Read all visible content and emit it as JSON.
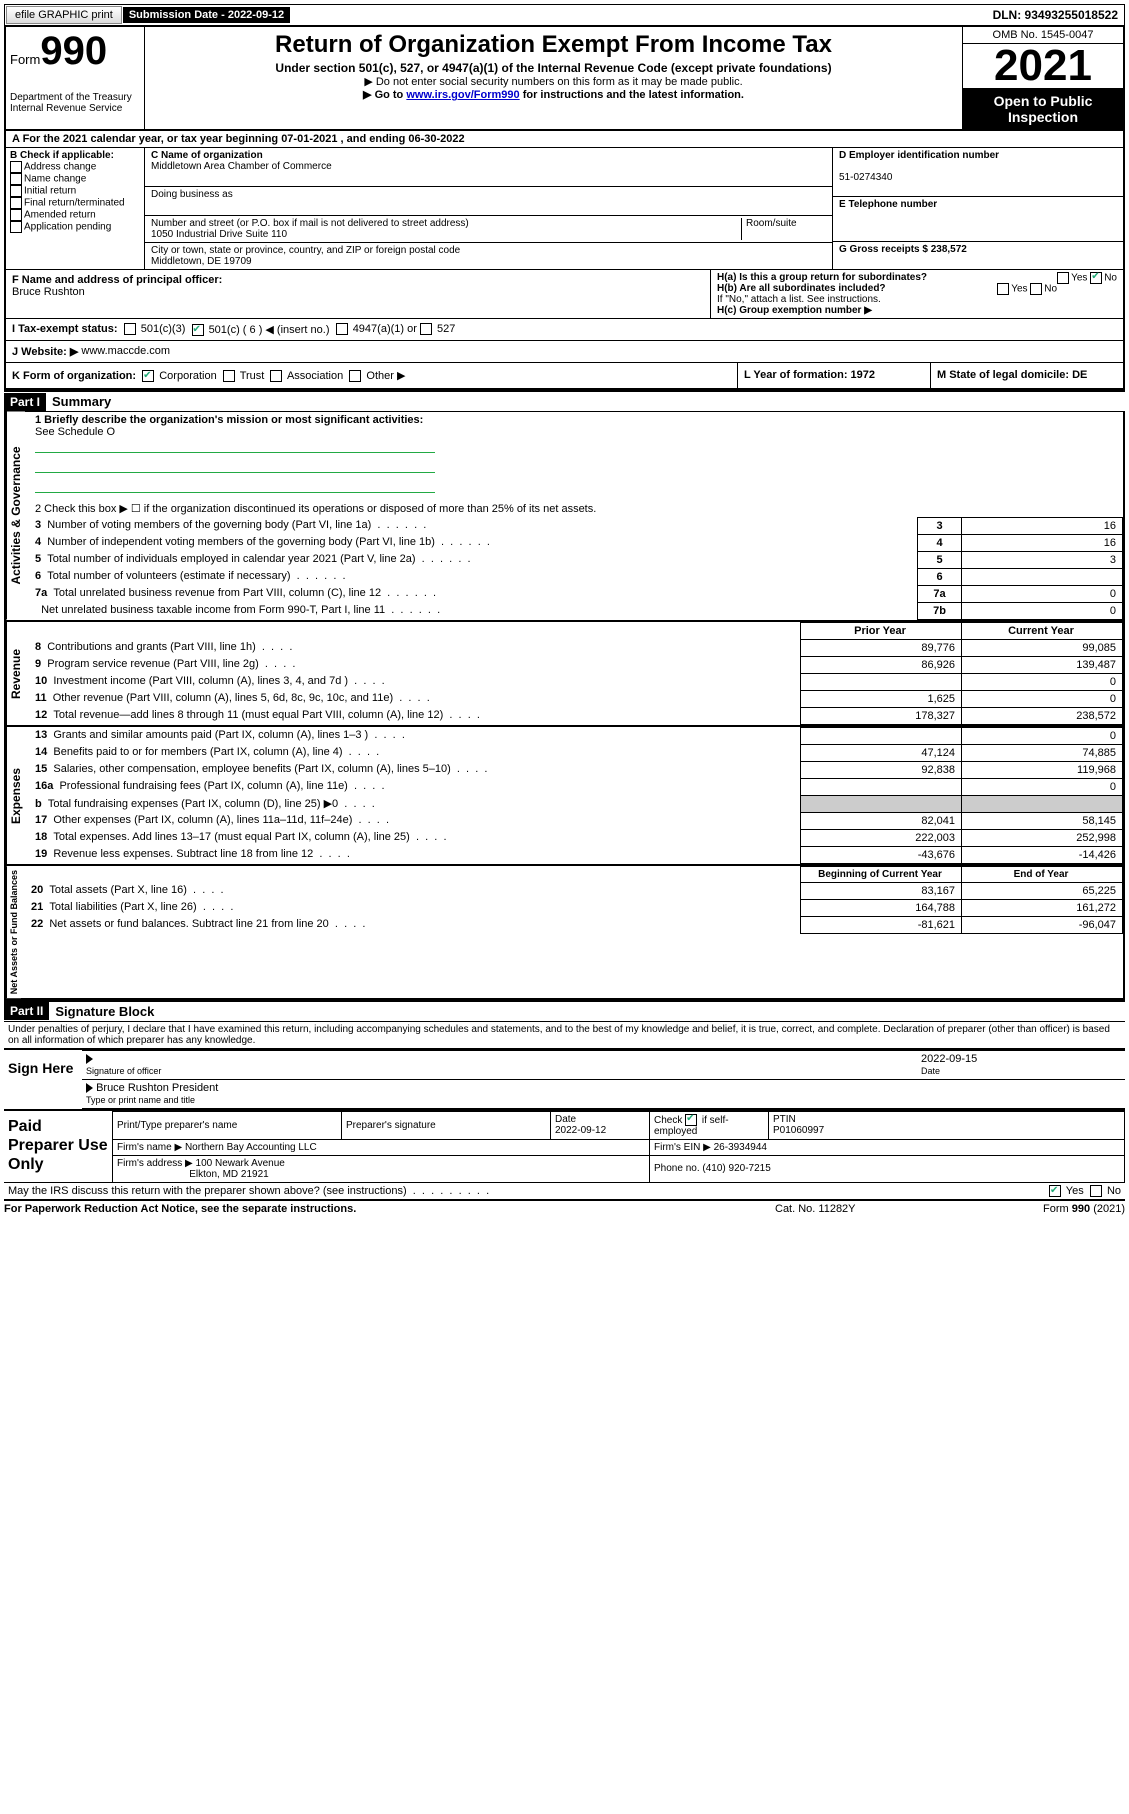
{
  "topbar": {
    "efile_label": "efile GRAPHIC print",
    "submission_label": "Submission Date - 2022-09-12",
    "dln": "DLN: 93493255018522"
  },
  "header": {
    "form_prefix": "Form",
    "form_number": "990",
    "dept": "Department of the Treasury",
    "irs": "Internal Revenue Service",
    "title": "Return of Organization Exempt From Income Tax",
    "subtitle": "Under section 501(c), 527, or 4947(a)(1) of the Internal Revenue Code (except private foundations)",
    "note1": "▶ Do not enter social security numbers on this form as it may be made public.",
    "note2_pre": "▶ Go to ",
    "note2_link": "www.irs.gov/Form990",
    "note2_post": " for instructions and the latest information.",
    "omb": "OMB No. 1545-0047",
    "year": "2021",
    "open": "Open to Public Inspection"
  },
  "section_a": {
    "line_a": "A For the 2021 calendar year, or tax year beginning 07-01-2021   , and ending 06-30-2022",
    "b_label": "B Check if applicable:",
    "b_opts": [
      "Address change",
      "Name change",
      "Initial return",
      "Final return/terminated",
      "Amended return",
      "Application pending"
    ],
    "c_label": "C Name of organization",
    "c_name": "Middletown Area Chamber of Commerce",
    "dba_label": "Doing business as",
    "street_label": "Number and street (or P.O. box if mail is not delivered to street address)",
    "room_label": "Room/suite",
    "street": "1050 Industrial Drive Suite 110",
    "city_label": "City or town, state or province, country, and ZIP or foreign postal code",
    "city": "Middletown, DE  19709",
    "d_label": "D Employer identification number",
    "d_val": "51-0274340",
    "e_label": "E Telephone number",
    "g_label": "G Gross receipts $ 238,572",
    "f_label": "F  Name and address of principal officer:",
    "f_val": "Bruce Rushton",
    "ha_label": "H(a)  Is this a group return for subordinates?",
    "hb_label": "H(b)  Are all subordinates included?",
    "hb_note": "If \"No,\" attach a list. See instructions.",
    "hc_label": "H(c)  Group exemption number ▶",
    "yes": "Yes",
    "no": "No",
    "i_label": "I   Tax-exempt status:",
    "i_501c3": "501(c)(3)",
    "i_501c": "501(c) ( 6 ) ◀ (insert no.)",
    "i_4947": "4947(a)(1) or",
    "i_527": "527",
    "j_label": "J   Website: ▶",
    "j_val": "www.maccde.com",
    "k_label": "K Form of organization:",
    "k_corp": "Corporation",
    "k_trust": "Trust",
    "k_assoc": "Association",
    "k_other": "Other ▶",
    "l_label": "L Year of formation: 1972",
    "m_label": "M State of legal domicile: DE"
  },
  "part1": {
    "header": "Part I",
    "title": "Summary",
    "line1_label": "1  Briefly describe the organization's mission or most significant activities:",
    "line1_val": "See Schedule O",
    "line2": "2   Check this box ▶ ☐  if the organization discontinued its operations or disposed of more than 25% of its net assets.",
    "rows_gov": [
      {
        "n": "3",
        "label": "Number of voting members of the governing body (Part VI, line 1a)",
        "box": "3",
        "val": "16"
      },
      {
        "n": "4",
        "label": "Number of independent voting members of the governing body (Part VI, line 1b)",
        "box": "4",
        "val": "16"
      },
      {
        "n": "5",
        "label": "Total number of individuals employed in calendar year 2021 (Part V, line 2a)",
        "box": "5",
        "val": "3"
      },
      {
        "n": "6",
        "label": "Total number of volunteers (estimate if necessary)",
        "box": "6",
        "val": ""
      },
      {
        "n": "7a",
        "label": "Total unrelated business revenue from Part VIII, column (C), line 12",
        "box": "7a",
        "val": "0"
      },
      {
        "n": "",
        "label": "Net unrelated business taxable income from Form 990-T, Part I, line 11",
        "box": "7b",
        "val": "0"
      }
    ],
    "prior_hdr": "Prior Year",
    "current_hdr": "Current Year",
    "rows_rev": [
      {
        "n": "8",
        "label": "Contributions and grants (Part VIII, line 1h)",
        "prior": "89,776",
        "curr": "99,085"
      },
      {
        "n": "9",
        "label": "Program service revenue (Part VIII, line 2g)",
        "prior": "86,926",
        "curr": "139,487"
      },
      {
        "n": "10",
        "label": "Investment income (Part VIII, column (A), lines 3, 4, and 7d )",
        "prior": "",
        "curr": "0"
      },
      {
        "n": "11",
        "label": "Other revenue (Part VIII, column (A), lines 5, 6d, 8c, 9c, 10c, and 11e)",
        "prior": "1,625",
        "curr": "0"
      },
      {
        "n": "12",
        "label": "Total revenue—add lines 8 through 11 (must equal Part VIII, column (A), line 12)",
        "prior": "178,327",
        "curr": "238,572"
      }
    ],
    "rows_exp": [
      {
        "n": "13",
        "label": "Grants and similar amounts paid (Part IX, column (A), lines 1–3 )",
        "prior": "",
        "curr": "0"
      },
      {
        "n": "14",
        "label": "Benefits paid to or for members (Part IX, column (A), line 4)",
        "prior": "47,124",
        "curr": "74,885"
      },
      {
        "n": "15",
        "label": "Salaries, other compensation, employee benefits (Part IX, column (A), lines 5–10)",
        "prior": "92,838",
        "curr": "119,968"
      },
      {
        "n": "16a",
        "label": "Professional fundraising fees (Part IX, column (A), line 11e)",
        "prior": "",
        "curr": "0"
      },
      {
        "n": "b",
        "label": "Total fundraising expenses (Part IX, column (D), line 25) ▶0",
        "prior": "shade",
        "curr": "shade"
      },
      {
        "n": "17",
        "label": "Other expenses (Part IX, column (A), lines 11a–11d, 11f–24e)",
        "prior": "82,041",
        "curr": "58,145"
      },
      {
        "n": "18",
        "label": "Total expenses. Add lines 13–17 (must equal Part IX, column (A), line 25)",
        "prior": "222,003",
        "curr": "252,998"
      },
      {
        "n": "19",
        "label": "Revenue less expenses. Subtract line 18 from line 12",
        "prior": "-43,676",
        "curr": "-14,426"
      }
    ],
    "boy_hdr": "Beginning of Current Year",
    "eoy_hdr": "End of Year",
    "rows_net": [
      {
        "n": "20",
        "label": "Total assets (Part X, line 16)",
        "prior": "83,167",
        "curr": "65,225"
      },
      {
        "n": "21",
        "label": "Total liabilities (Part X, line 26)",
        "prior": "164,788",
        "curr": "161,272"
      },
      {
        "n": "22",
        "label": "Net assets or fund balances. Subtract line 21 from line 20",
        "prior": "-81,621",
        "curr": "-96,047"
      }
    ],
    "vlab_gov": "Activities & Governance",
    "vlab_rev": "Revenue",
    "vlab_exp": "Expenses",
    "vlab_net": "Net Assets or Fund Balances"
  },
  "part2": {
    "header": "Part II",
    "title": "Signature Block",
    "decl": "Under penalties of perjury, I declare that I have examined this return, including accompanying schedules and statements, and to the best of my knowledge and belief, it is true, correct, and complete. Declaration of preparer (other than officer) is based on all information of which preparer has any knowledge.",
    "sign_here": "Sign Here",
    "sig_officer": "Signature of officer",
    "sig_date": "2022-09-15",
    "date_label": "Date",
    "name_title": "Bruce Rushton  President",
    "name_label": "Type or print name and title",
    "paid": "Paid Preparer Use Only",
    "pt_name_label": "Print/Type preparer's name",
    "pt_sig_label": "Preparer's signature",
    "pt_date_label": "Date",
    "pt_date": "2022-09-12",
    "pt_check_label": "Check ☑ if self-employed",
    "ptin_label": "PTIN",
    "ptin": "P01060997",
    "firm_name_label": "Firm's name     ▶",
    "firm_name": "Northern Bay Accounting LLC",
    "firm_ein_label": "Firm's EIN ▶",
    "firm_ein": "26-3934944",
    "firm_addr_label": "Firm's address ▶",
    "firm_addr": "100 Newark Avenue",
    "firm_city": "Elkton, MD  21921",
    "phone_label": "Phone no.",
    "phone": "(410) 920-7215",
    "may_irs": "May the IRS discuss this return with the preparer shown above? (see instructions)",
    "footer_left": "For Paperwork Reduction Act Notice, see the separate instructions.",
    "footer_mid": "Cat. No. 11282Y",
    "footer_right": "Form 990 (2021)"
  }
}
